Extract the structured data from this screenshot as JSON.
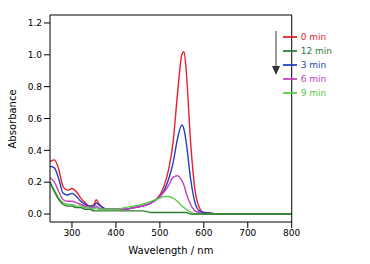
{
  "chart_data": {
    "type": "line",
    "x_label": "Wavelength / nm",
    "y_label": "Absorbance",
    "x": [
      250,
      260,
      270,
      280,
      290,
      300,
      310,
      320,
      330,
      340,
      350,
      355,
      360,
      370,
      380,
      400,
      420,
      440,
      460,
      480,
      500,
      510,
      520,
      530,
      540,
      550,
      555,
      560,
      570,
      580,
      590,
      600,
      650,
      700,
      750,
      800
    ],
    "series": [
      {
        "name": "0 min",
        "color": "#e8202a",
        "values": [
          0.33,
          0.34,
          0.28,
          0.17,
          0.15,
          0.16,
          0.14,
          0.1,
          0.07,
          0.05,
          0.06,
          0.09,
          0.07,
          0.04,
          0.03,
          0.03,
          0.03,
          0.04,
          0.05,
          0.07,
          0.12,
          0.18,
          0.28,
          0.45,
          0.75,
          1.0,
          1.02,
          0.9,
          0.45,
          0.15,
          0.04,
          0.01,
          0.0,
          0.0,
          0.0,
          0.0
        ]
      },
      {
        "name": "3 min",
        "color": "#1f3fbf",
        "values": [
          0.3,
          0.29,
          0.22,
          0.13,
          0.12,
          0.13,
          0.11,
          0.08,
          0.06,
          0.05,
          0.05,
          0.07,
          0.06,
          0.04,
          0.03,
          0.03,
          0.03,
          0.04,
          0.05,
          0.07,
          0.11,
          0.15,
          0.22,
          0.32,
          0.47,
          0.56,
          0.53,
          0.45,
          0.22,
          0.07,
          0.02,
          0.01,
          0.0,
          0.0,
          0.0,
          0.0
        ]
      },
      {
        "name": "6 min",
        "color": "#c040c0",
        "values": [
          0.23,
          0.2,
          0.14,
          0.09,
          0.08,
          0.08,
          0.07,
          0.06,
          0.05,
          0.04,
          0.04,
          0.05,
          0.04,
          0.03,
          0.03,
          0.03,
          0.03,
          0.04,
          0.05,
          0.07,
          0.11,
          0.14,
          0.18,
          0.23,
          0.24,
          0.21,
          0.18,
          0.13,
          0.06,
          0.02,
          0.01,
          0.0,
          0.0,
          0.0,
          0.0,
          0.0
        ]
      },
      {
        "name": "9 min",
        "color": "#5cc84a",
        "values": [
          0.2,
          0.15,
          0.1,
          0.07,
          0.06,
          0.06,
          0.05,
          0.05,
          0.04,
          0.04,
          0.03,
          0.04,
          0.03,
          0.03,
          0.03,
          0.03,
          0.04,
          0.05,
          0.06,
          0.08,
          0.1,
          0.11,
          0.11,
          0.1,
          0.08,
          0.05,
          0.04,
          0.03,
          0.01,
          0.0,
          0.0,
          0.0,
          0.0,
          0.0,
          0.0,
          0.0
        ]
      },
      {
        "name": "12 min",
        "color": "#2e7d32",
        "values": [
          0.2,
          0.14,
          0.09,
          0.06,
          0.05,
          0.05,
          0.04,
          0.04,
          0.03,
          0.03,
          0.02,
          0.02,
          0.02,
          0.02,
          0.02,
          0.02,
          0.02,
          0.02,
          0.02,
          0.01,
          0.01,
          0.01,
          0.01,
          0.01,
          0.01,
          0.01,
          0.01,
          0.01,
          0.0,
          0.0,
          0.0,
          0.0,
          0.0,
          0.0,
          0.0,
          0.0
        ]
      }
    ],
    "xlim": [
      250,
      800
    ],
    "xticks": [
      300,
      400,
      500,
      600,
      700,
      800
    ],
    "ylim": [
      -0.05,
      1.25
    ],
    "yticks": [
      {
        "value": 0,
        "label": "0.0"
      },
      {
        "value": 0.2,
        "label": "0.2"
      },
      {
        "value": 0.4,
        "label": "0.4"
      },
      {
        "value": 0.6,
        "label": "0.6"
      },
      {
        "value": 0.8,
        "label": "0.8"
      },
      {
        "value": 1.0,
        "label": "1.0"
      },
      {
        "value": 1.2,
        "label": "1.2"
      }
    ],
    "legend": "upper right",
    "grid": false
  }
}
